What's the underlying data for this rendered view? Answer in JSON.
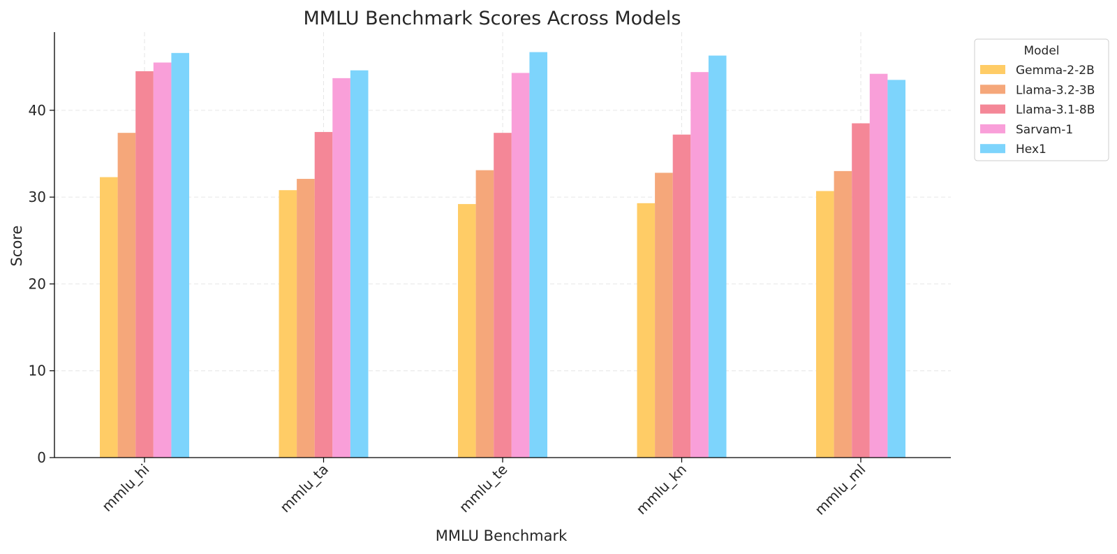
{
  "chart_data": {
    "type": "bar",
    "title": "MMLU Benchmark Scores Across Models",
    "xlabel": "MMLU Benchmark",
    "ylabel": "Score",
    "categories": [
      "mmlu_hi",
      "mmlu_ta",
      "mmlu_te",
      "mmlu_kn",
      "mmlu_ml"
    ],
    "ylim": [
      0,
      49
    ],
    "yticks": [
      0,
      10,
      20,
      30,
      40
    ],
    "grid": true,
    "legend": {
      "title": "Model",
      "placement": "outside-top-right"
    },
    "series": [
      {
        "name": "Gemma-2-2B",
        "color": "#FFCC66",
        "values": [
          32.3,
          30.8,
          29.2,
          29.3,
          30.7
        ]
      },
      {
        "name": "Llama-3.2-3B",
        "color": "#F5A77A",
        "values": [
          37.4,
          32.1,
          33.1,
          32.8,
          33.0
        ]
      },
      {
        "name": "Llama-3.1-8B",
        "color": "#F48797",
        "values": [
          44.5,
          37.5,
          37.4,
          37.2,
          38.5
        ]
      },
      {
        "name": "Sarvam-1",
        "color": "#F99FD9",
        "values": [
          45.5,
          43.7,
          44.3,
          44.4,
          44.2
        ]
      },
      {
        "name": "Hex1",
        "color": "#7DD4FC",
        "values": [
          46.6,
          44.6,
          46.7,
          46.3,
          43.5
        ]
      }
    ]
  }
}
